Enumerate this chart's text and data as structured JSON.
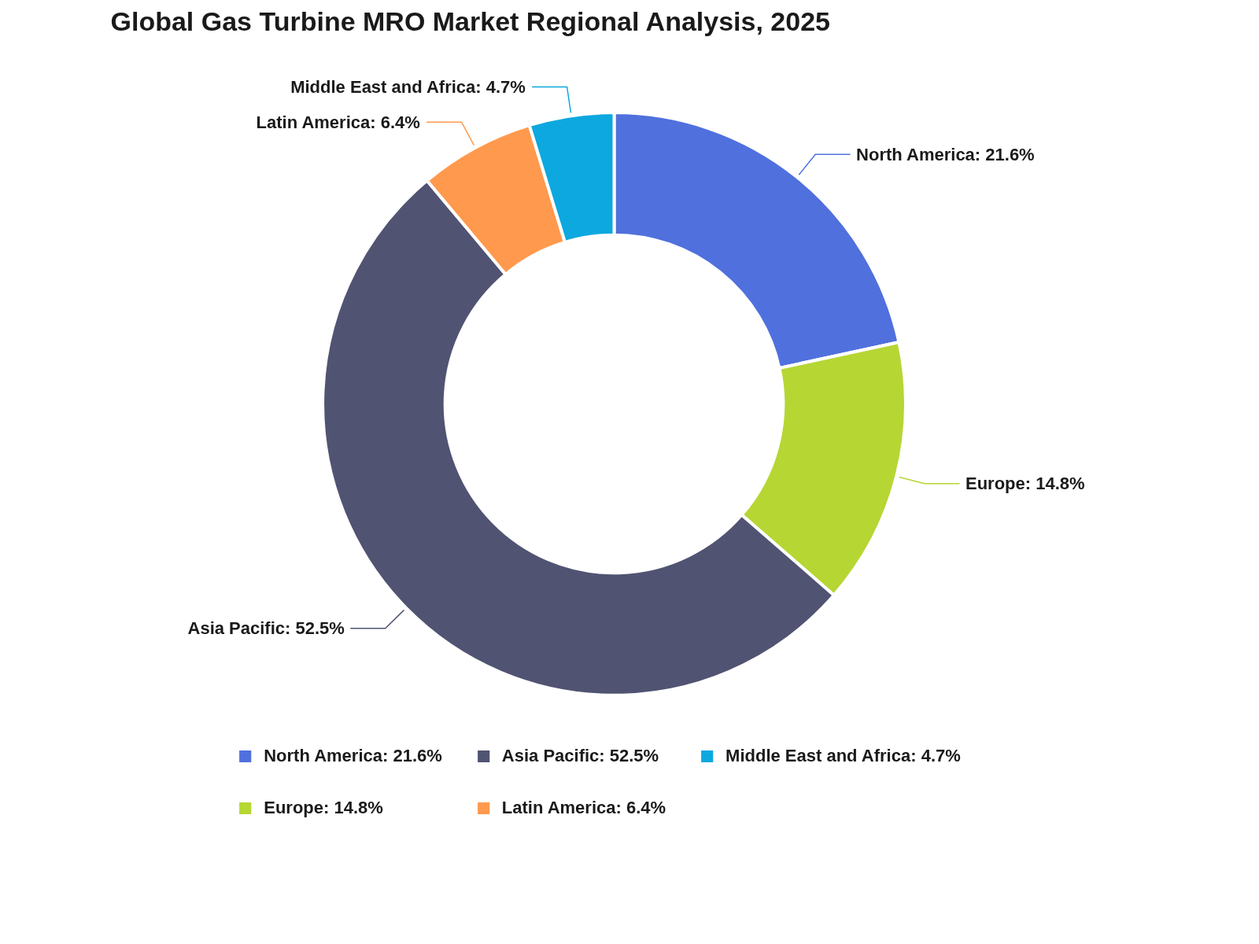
{
  "chart_data": {
    "type": "donut",
    "title": "Global Gas Turbine MRO Market Regional Analysis, 2025",
    "categories": [
      "North America",
      "Europe",
      "Asia Pacific",
      "Latin America",
      "Middle East and Africa"
    ],
    "values": [
      21.6,
      14.8,
      52.5,
      6.4,
      4.7
    ],
    "colors": [
      "#5070dd",
      "#b6d634",
      "#505372",
      "#ff994d",
      "#0ca8df"
    ],
    "value_labels": [
      "21.6%",
      "14.8%",
      "52.5%",
      "6.4%",
      "4.7%"
    ],
    "legend": "bottom"
  }
}
